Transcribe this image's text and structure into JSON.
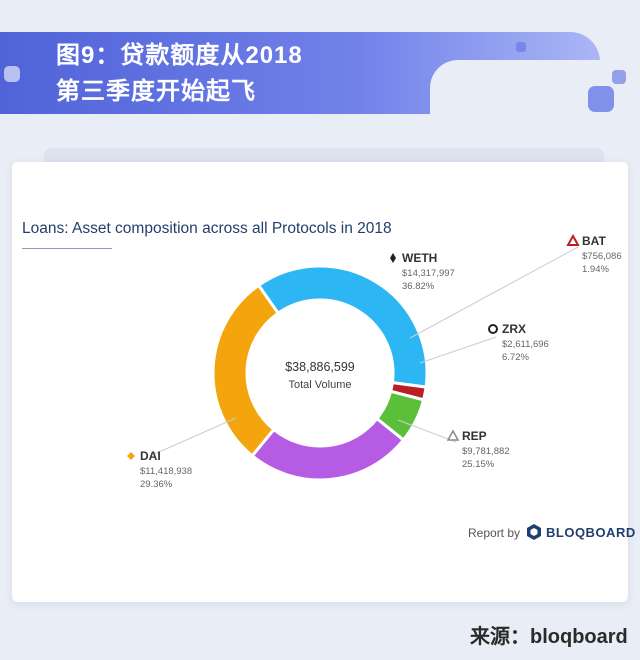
{
  "header": {
    "title_line1": "图9：贷款额度从2018",
    "title_line2": "第三季度开始起飞"
  },
  "footer": {
    "report_by": "Report by",
    "brand": "BLOQBOARD",
    "source": "来源：bloqboard"
  },
  "colors": {
    "WETH": "#2cb6f4",
    "BAT": "#b91f24",
    "ZRX": "#5bbf3a",
    "REP": "#b65ce4",
    "DAI": "#f4a40c"
  },
  "chart_data": {
    "type": "pie",
    "title": "Loans: Asset composition across all Protocols in 2018",
    "center": {
      "value": "$38,886,599",
      "label": "Total Volume"
    },
    "slices": [
      {
        "name": "WETH",
        "amount": "$14,317,997",
        "pct_label": "36.82%",
        "value": 36.82
      },
      {
        "name": "BAT",
        "amount": "$756,086",
        "pct_label": "1.94%",
        "value": 1.94
      },
      {
        "name": "ZRX",
        "amount": "$2,611,696",
        "pct_label": "6.72%",
        "value": 6.72
      },
      {
        "name": "REP",
        "amount": "$9,781,882",
        "pct_label": "25.15%",
        "value": 25.15
      },
      {
        "name": "DAI",
        "amount": "$11,418,938",
        "pct_label": "29.36%",
        "value": 29.36
      }
    ]
  }
}
